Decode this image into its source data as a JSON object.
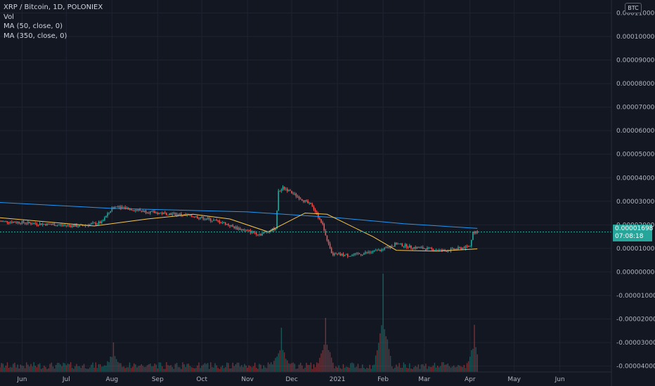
{
  "legend": {
    "symbol_line": "XRP / Bitcoin, 1D, POLONIEX",
    "vol": "Vol",
    "ma50": "MA (50, close, 0)",
    "ma350": "MA (350, close, 0)"
  },
  "currency": "BTC",
  "price_badge": {
    "price": "0.00001698",
    "countdown": "07:08:18"
  },
  "colors": {
    "background": "#131722",
    "up": "#26a69a",
    "down": "#ef5350",
    "ma50": "#f9c74f",
    "ma350": "#2196f3",
    "grid": "#1f2330"
  },
  "chart_data": {
    "type": "candlestick",
    "y_axis": {
      "ticks": [
        "0.00011000",
        "0.00010000",
        "0.00009000",
        "0.00008000",
        "0.00007000",
        "0.00006000",
        "0.00005000",
        "0.00004000",
        "0.00003000",
        "0.00002000",
        "0.00001000",
        "0.00000000",
        "-0.00001000",
        "-0.00002000",
        "-0.00003000",
        "-0.00004000"
      ],
      "ylim": [
        -4.25e-05,
        0.0001155
      ]
    },
    "x_axis": {
      "labels": [
        "Jun",
        "Jul",
        "Aug",
        "Sep",
        "Oct",
        "Nov",
        "Dec",
        "2021",
        "Feb",
        "Mar",
        "Apr",
        "May",
        "Jun"
      ],
      "xlim": [
        "2020-05-17",
        "2021-07-06"
      ],
      "label_dates": [
        "2020-06-01",
        "2020-07-01",
        "2020-08-01",
        "2020-09-01",
        "2020-10-01",
        "2020-11-01",
        "2020-12-01",
        "2021-01-01",
        "2021-02-01",
        "2021-03-01",
        "2021-04-01",
        "2021-05-01",
        "2021-06-01"
      ]
    },
    "price_path": [
      [
        "2020-05-17",
        2.15e-05
      ],
      [
        "2020-06-01",
        2.1e-05
      ],
      [
        "2020-06-10",
        2.05e-05
      ],
      [
        "2020-06-25",
        2e-05
      ],
      [
        "2020-07-10",
        1.95e-05
      ],
      [
        "2020-07-25",
        2.1e-05
      ],
      [
        "2020-08-01",
        2.7e-05
      ],
      [
        "2020-08-05",
        2.8e-05
      ],
      [
        "2020-08-15",
        2.65e-05
      ],
      [
        "2020-09-01",
        2.5e-05
      ],
      [
        "2020-09-15",
        2.45e-05
      ],
      [
        "2020-10-01",
        2.3e-05
      ],
      [
        "2020-10-15",
        2.1e-05
      ],
      [
        "2020-10-25",
        1.85e-05
      ],
      [
        "2020-11-10",
        1.6e-05
      ],
      [
        "2020-11-20",
        1.85e-05
      ],
      [
        "2020-11-22",
        3.4e-05
      ],
      [
        "2020-11-25",
        3.6e-05
      ],
      [
        "2020-12-05",
        3.2e-05
      ],
      [
        "2020-12-15",
        2.8e-05
      ],
      [
        "2020-12-22",
        2e-05
      ],
      [
        "2020-12-28",
        7.5e-06
      ],
      [
        "2021-01-10",
        7e-06
      ],
      [
        "2021-01-25",
        8.5e-06
      ],
      [
        "2021-02-01",
        9.5e-06
      ],
      [
        "2021-02-10",
        1.2e-05
      ],
      [
        "2021-02-20",
        1.05e-05
      ],
      [
        "2021-03-01",
        1e-05
      ],
      [
        "2021-03-15",
        9e-06
      ],
      [
        "2021-03-25",
        1e-05
      ],
      [
        "2021-04-01",
        1.08e-05
      ],
      [
        "2021-04-03",
        1.7e-05
      ],
      [
        "2021-04-06",
        1.7e-05
      ]
    ],
    "ma50_path": [
      [
        "2020-05-17",
        2.3e-05
      ],
      [
        "2020-07-20",
        1.95e-05
      ],
      [
        "2020-08-25",
        2.25e-05
      ],
      [
        "2020-09-25",
        2.45e-05
      ],
      [
        "2020-10-20",
        2.25e-05
      ],
      [
        "2020-11-15",
        1.7e-05
      ],
      [
        "2020-12-10",
        2.5e-05
      ],
      [
        "2020-12-25",
        2.45e-05
      ],
      [
        "2021-01-25",
        1.5e-05
      ],
      [
        "2021-02-10",
        9.2e-06
      ],
      [
        "2021-03-10",
        8.8e-06
      ],
      [
        "2021-04-06",
        9.8e-06
      ]
    ],
    "ma350_path": [
      [
        "2020-05-17",
        2.95e-05
      ],
      [
        "2020-08-01",
        2.7e-05
      ],
      [
        "2020-11-01",
        2.55e-05
      ],
      [
        "2021-01-01",
        2.3e-05
      ],
      [
        "2021-02-15",
        2.05e-05
      ],
      [
        "2021-04-06",
        1.85e-05
      ]
    ],
    "volume": {
      "spikes": [
        [
          "2020-11-24",
          0.45
        ],
        [
          "2020-12-24",
          0.55
        ],
        [
          "2021-02-01",
          1.0
        ],
        [
          "2021-04-04",
          0.48
        ],
        [
          "2020-08-02",
          0.3
        ]
      ]
    }
  },
  "x_tick_texts": [
    "Jun",
    "Jul",
    "Aug",
    "Sep",
    "Oct",
    "Nov",
    "Dec",
    "2021",
    "Feb",
    "Mar",
    "Apr",
    "May",
    "Jun"
  ]
}
